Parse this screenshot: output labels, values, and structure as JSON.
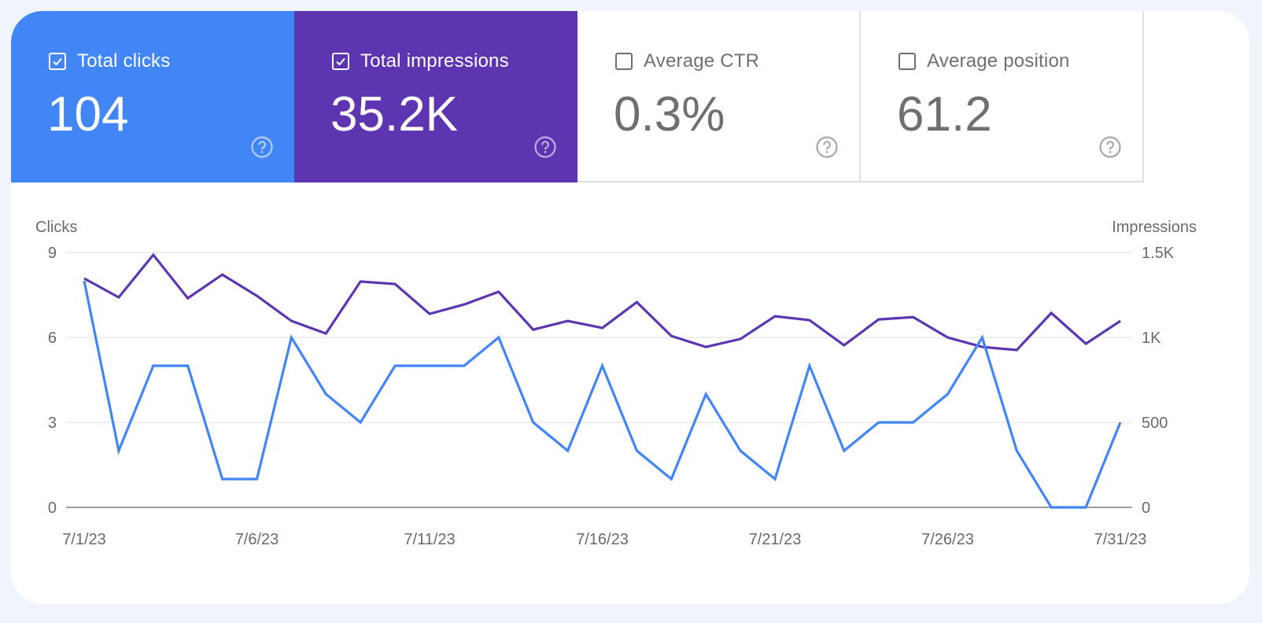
{
  "colors": {
    "clicks": "#4285f4",
    "impressions": "#5e35b1",
    "grid": "#e9e9e9",
    "axis": "#9e9e9e",
    "text_muted": "#6f6f6f"
  },
  "metrics": [
    {
      "id": "clicks",
      "label": "Total clicks",
      "value": "104",
      "checked": true,
      "help_icon": "help-circle-icon"
    },
    {
      "id": "impressions",
      "label": "Total impressions",
      "value": "35.2K",
      "checked": true,
      "help_icon": "help-circle-icon"
    },
    {
      "id": "ctr",
      "label": "Average CTR",
      "value": "0.3%",
      "checked": false,
      "help_icon": "help-circle-icon"
    },
    {
      "id": "position",
      "label": "Average position",
      "value": "61.2",
      "checked": false,
      "help_icon": "help-circle-icon"
    }
  ],
  "chart_data": {
    "type": "line",
    "title": "",
    "ylabel_left": "Clicks",
    "ylabel_right": "Impressions",
    "ylim_left": [
      0,
      9
    ],
    "ylim_right": [
      0,
      1500
    ],
    "left_ticks": [
      "0",
      "3",
      "6",
      "9"
    ],
    "left_tick_values": [
      0,
      3,
      6,
      9
    ],
    "right_ticks": [
      "0",
      "500",
      "1K",
      "1.5K"
    ],
    "right_tick_values": [
      0,
      500,
      1000,
      1500
    ],
    "grid": true,
    "x": [
      "7/1/23",
      "7/2/23",
      "7/3/23",
      "7/4/23",
      "7/5/23",
      "7/6/23",
      "7/7/23",
      "7/8/23",
      "7/9/23",
      "7/10/23",
      "7/11/23",
      "7/12/23",
      "7/13/23",
      "7/14/23",
      "7/15/23",
      "7/16/23",
      "7/17/23",
      "7/18/23",
      "7/19/23",
      "7/20/23",
      "7/21/23",
      "7/22/23",
      "7/23/23",
      "7/24/23",
      "7/25/23",
      "7/26/23",
      "7/27/23",
      "7/28/23",
      "7/29/23",
      "7/30/23",
      "7/31/23"
    ],
    "x_tick_labels": [
      "7/1/23",
      "7/6/23",
      "7/11/23",
      "7/16/23",
      "7/21/23",
      "7/26/23",
      "7/31/23"
    ],
    "x_tick_indices": [
      0,
      5,
      10,
      15,
      20,
      25,
      30
    ],
    "series": [
      {
        "name": "Clicks",
        "axis": "left",
        "color": "#4285f4",
        "values": [
          8,
          2,
          5,
          5,
          1,
          1,
          6,
          4,
          3,
          5,
          5,
          5,
          6,
          3,
          2,
          5,
          2,
          1,
          4,
          2,
          1,
          5,
          2,
          3,
          3,
          4,
          6,
          2,
          0,
          0,
          3
        ]
      },
      {
        "name": "Impressions",
        "axis": "right",
        "color": "#5e35b1",
        "values": [
          1347,
          1236,
          1486,
          1231,
          1370,
          1245,
          1097,
          1023,
          1329,
          1315,
          1139,
          1194,
          1269,
          1046,
          1097,
          1056,
          1208,
          1009,
          944,
          991,
          1125,
          1102,
          954,
          1106,
          1120,
          1000,
          944,
          926,
          1144,
          963,
          1097
        ]
      }
    ]
  }
}
